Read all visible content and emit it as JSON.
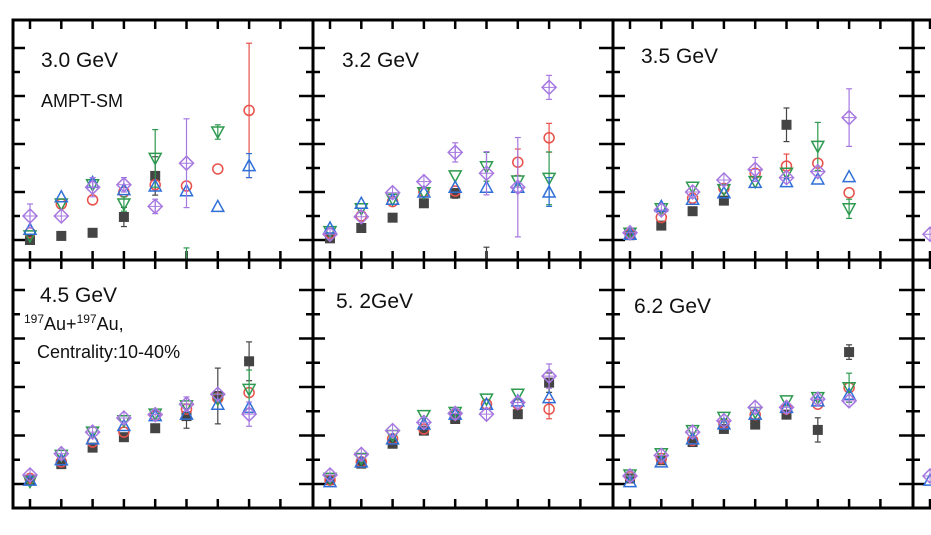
{
  "chart_data": {
    "type": "scatter",
    "title": "",
    "xlabel": "",
    "ylabel": "",
    "grid": false,
    "x": [
      1,
      2,
      3,
      4,
      5,
      6,
      7,
      8
    ],
    "ylim_top_row": [
      -0.83,
      9.17
    ],
    "ylim_bottom_row": [
      -1,
      9.2
    ],
    "series_styles": [
      {
        "key": "black",
        "marker": "filled-square",
        "color": "#444444"
      },
      {
        "key": "red",
        "marker": "open-circle",
        "color": "#e8504a"
      },
      {
        "key": "green",
        "marker": "open-down-triangle",
        "color": "#2e9a4f"
      },
      {
        "key": "blue",
        "marker": "open-up-triangle",
        "color": "#2f6fd8"
      },
      {
        "key": "purple",
        "marker": "open-diamond-cross",
        "color": "#a678e0"
      }
    ],
    "panels": [
      {
        "title": "3.0 GeV",
        "model": "AMPT-SM",
        "series": {
          "black": {
            "y": [
              0,
              0.17,
              0.3,
              0.96,
              2.67,
              null,
              null,
              null
            ],
            "err": [
              0,
              0,
              0,
              0.4,
              0.8,
              0,
              0,
              0
            ]
          },
          "red": {
            "y": [
              0.3,
              1.5,
              1.67,
              2.0,
              2.3,
              2.25,
              2.96,
              5.4
            ],
            "err": [
              0,
              0,
              0,
              0,
              0,
              0,
              0,
              2.8
            ]
          },
          "green": {
            "y": [
              0.17,
              1.5,
              2.3,
              1.5,
              3.4,
              -1.2,
              4.5,
              null
            ],
            "err": [
              0,
              0,
              0,
              0.3,
              1.2,
              0.87,
              0.3,
              0
            ]
          },
          "blue": {
            "y": [
              0.45,
              1.8,
              2.4,
              2.1,
              2.25,
              2.05,
              1.4,
              3.1
            ],
            "err": [
              0,
              0,
              0.2,
              0,
              0,
              0,
              0,
              0.5
            ]
          },
          "purple": {
            "y": [
              1.0,
              1.0,
              2.2,
              2.3,
              1.4,
              3.2,
              null,
              null
            ],
            "err": [
              0.5,
              0,
              0.4,
              0.3,
              0.3,
              1.85,
              0,
              0
            ]
          }
        }
      },
      {
        "title": "3.2 GeV",
        "series": {
          "black": {
            "y": [
              0.07,
              0.5,
              0.93,
              1.53,
              1.94,
              -1.0,
              null,
              null
            ],
            "err": [
              0,
              0,
              0,
              0,
              0.2,
              0.7,
              0,
              0
            ]
          },
          "red": {
            "y": [
              0.28,
              1.0,
              1.6,
              2.0,
              2.04,
              null,
              3.24,
              4.26
            ],
            "err": [
              0,
              0,
              0,
              0,
              0,
              0,
              0.55,
              0.6
            ]
          },
          "green": {
            "y": [
              0.35,
              1.3,
              1.7,
              1.97,
              2.67,
              3.05,
              2.46,
              2.57
            ],
            "err": [
              0,
              0,
              0,
              0,
              0,
              0.6,
              0,
              1.1
            ]
          },
          "blue": {
            "y": [
              0.5,
              1.53,
              1.7,
              2.0,
              2.2,
              2.2,
              2.2,
              2.0
            ],
            "err": [
              0,
              0,
              0,
              0,
              0,
              0,
              0,
              0.6
            ]
          },
          "purple": {
            "y": [
              0.24,
              0.97,
              1.97,
              2.43,
              3.65,
              2.78,
              2.2,
              6.36
            ],
            "err": [
              0,
              0,
              0,
              0,
              0.4,
              0.9,
              2.07,
              0.5
            ]
          }
        }
      },
      {
        "title": "3.5 GeV",
        "series": {
          "black": {
            "y": [
              0.2,
              0.6,
              1.2,
              1.64,
              null,
              4.8,
              null,
              null
            ],
            "err": [
              0,
              0,
              0,
              0,
              0,
              0.7,
              0,
              0
            ]
          },
          "red": {
            "y": [
              0.24,
              0.94,
              1.74,
              2.15,
              2.78,
              3.08,
              3.2,
              1.97
            ],
            "err": [
              0,
              0,
              0,
              0,
              0,
              0.5,
              0,
              0
            ]
          },
          "green": {
            "y": [
              0.28,
              1.3,
              2.2,
              2.1,
              2.43,
              2.78,
              3.9,
              1.3
            ],
            "err": [
              0,
              0,
              0,
              0,
              0,
              0,
              1.0,
              0.4
            ]
          },
          "blue": {
            "y": [
              0.24,
              1.4,
              1.7,
              1.97,
              2.4,
              2.43,
              2.54,
              2.64
            ],
            "err": [
              0,
              0,
              0,
              0,
              0,
              0,
              0,
              0
            ]
          },
          "purple": {
            "y": [
              0.3,
              1.25,
              2.0,
              2.5,
              2.94,
              2.6,
              2.85,
              5.1
            ],
            "err": [
              0,
              0,
              0,
              0,
              0.5,
              0,
              0,
              1.2
            ]
          }
        }
      },
      {
        "title": "4.5 GeV",
        "system": {
          "mass1": "197",
          "element1": "Au+",
          "mass2": "197",
          "element2": "Au,"
        },
        "centrality": "Centrality:10-40%",
        "series": {
          "black": {
            "y": [
              0.16,
              0.82,
              1.5,
              1.93,
              2.3,
              2.8,
              3.63,
              5.06
            ],
            "err": [
              0,
              0,
              0,
              0,
              0,
              0.5,
              1.15,
              0.8
            ]
          },
          "red": {
            "y": [
              0.23,
              0.91,
              1.73,
              2.14,
              2.82,
              3.09,
              3.54,
              3.77
            ],
            "err": [
              0,
              0,
              0,
              0,
              0,
              0,
              0,
              0
            ]
          },
          "green": {
            "y": [
              0.1,
              1.18,
              2.14,
              2.61,
              2.88,
              3.22,
              3.5,
              3.9
            ],
            "err": [
              0,
              0,
              0,
              0,
              0,
              0,
              0,
              0.8
            ]
          },
          "blue": {
            "y": [
              0.16,
              1.0,
              1.86,
              2.41,
              2.82,
              2.88,
              3.29,
              3.16
            ],
            "err": [
              0,
              0,
              0,
              0,
              0,
              0,
              0,
              0
            ]
          },
          "purple": {
            "y": [
              0.37,
              1.25,
              2.14,
              2.72,
              2.86,
              3.29,
              3.7,
              2.88
            ],
            "err": [
              0,
              0,
              0,
              0,
              0,
              0.3,
              0,
              0.5
            ]
          }
        }
      },
      {
        "title": "5. 2GeV",
        "series": {
          "black": {
            "y": [
              0.16,
              0.84,
              1.66,
              2.2,
              2.68,
              null,
              2.88,
              4.18
            ],
            "err": [
              0,
              0,
              0,
              0,
              0,
              0,
              0,
              0.4
            ]
          },
          "red": {
            "y": [
              0.16,
              0.91,
              1.86,
              2.27,
              2.86,
              3.29,
              3.29,
              3.09
            ],
            "err": [
              0,
              0,
              0,
              0,
              0,
              0,
              0,
              0.4
            ]
          },
          "green": {
            "y": [
              0.23,
              1.05,
              2.0,
              2.82,
              2.95,
              3.5,
              3.7,
              null
            ],
            "err": [
              0,
              0,
              0,
              0,
              0,
              0,
              0,
              0
            ]
          },
          "blue": {
            "y": [
              0.1,
              0.91,
              1.86,
              2.48,
              2.88,
              3.29,
              3.43,
              3.56
            ],
            "err": [
              0,
              0,
              0,
              0,
              0,
              0,
              0,
              0
            ]
          },
          "purple": {
            "y": [
              0.37,
              1.22,
              2.2,
              2.54,
              2.91,
              2.88,
              3.36,
              4.45
            ],
            "err": [
              0,
              0,
              0,
              0,
              0,
              0,
              0,
              0.5
            ]
          }
        }
      },
      {
        "title": "6.2 GeV",
        "series": {
          "black": {
            "y": [
              0.23,
              0.98,
              1.73,
              2.27,
              2.45,
              2.86,
              2.23,
              5.44
            ],
            "err": [
              0,
              0,
              0,
              0,
              0,
              0,
              0.5,
              0.3
            ]
          },
          "red": {
            "y": [
              0.3,
              1.05,
              1.8,
              2.48,
              2.86,
              3.09,
              3.29,
              3.97
            ],
            "err": [
              0,
              0,
              0,
              0,
              0,
              0,
              0,
              0
            ]
          },
          "green": {
            "y": [
              0.37,
              1.25,
              2.2,
              2.75,
              2.95,
              3.43,
              3.56,
              3.97
            ],
            "err": [
              0,
              0,
              0,
              0,
              0,
              0,
              0,
              0.6
            ]
          },
          "blue": {
            "y": [
              0.1,
              0.91,
              1.86,
              2.48,
              2.88,
              3.16,
              3.43,
              3.7
            ],
            "err": [
              0,
              0,
              0,
              0,
              0,
              0,
              0,
              0
            ]
          },
          "purple": {
            "y": [
              0.33,
              1.18,
              2.14,
              2.61,
              3.16,
              3.16,
              3.5,
              3.43
            ],
            "err": [
              0,
              0,
              0,
              0,
              0,
              0,
              0,
              0
            ]
          }
        }
      },
      {
        "title": null,
        "partial": true,
        "series": {
          "purple": {
            "y": [
              0.24,
              null,
              null,
              null,
              null,
              null,
              null,
              null
            ],
            "err": [
              0,
              0,
              0,
              0,
              0,
              0,
              0,
              0
            ]
          }
        }
      },
      {
        "title": null,
        "partial": true,
        "series": {
          "purple": {
            "y": [
              0.33,
              null,
              null,
              null,
              null,
              null,
              null,
              null
            ],
            "err": [
              0,
              0,
              0,
              0,
              0,
              0,
              0,
              0
            ]
          },
          "blue": {
            "y": [
              0.16,
              null,
              null,
              null,
              null,
              null,
              null,
              null
            ],
            "err": [
              0,
              0,
              0,
              0,
              0,
              0,
              0,
              0
            ]
          }
        }
      }
    ]
  }
}
